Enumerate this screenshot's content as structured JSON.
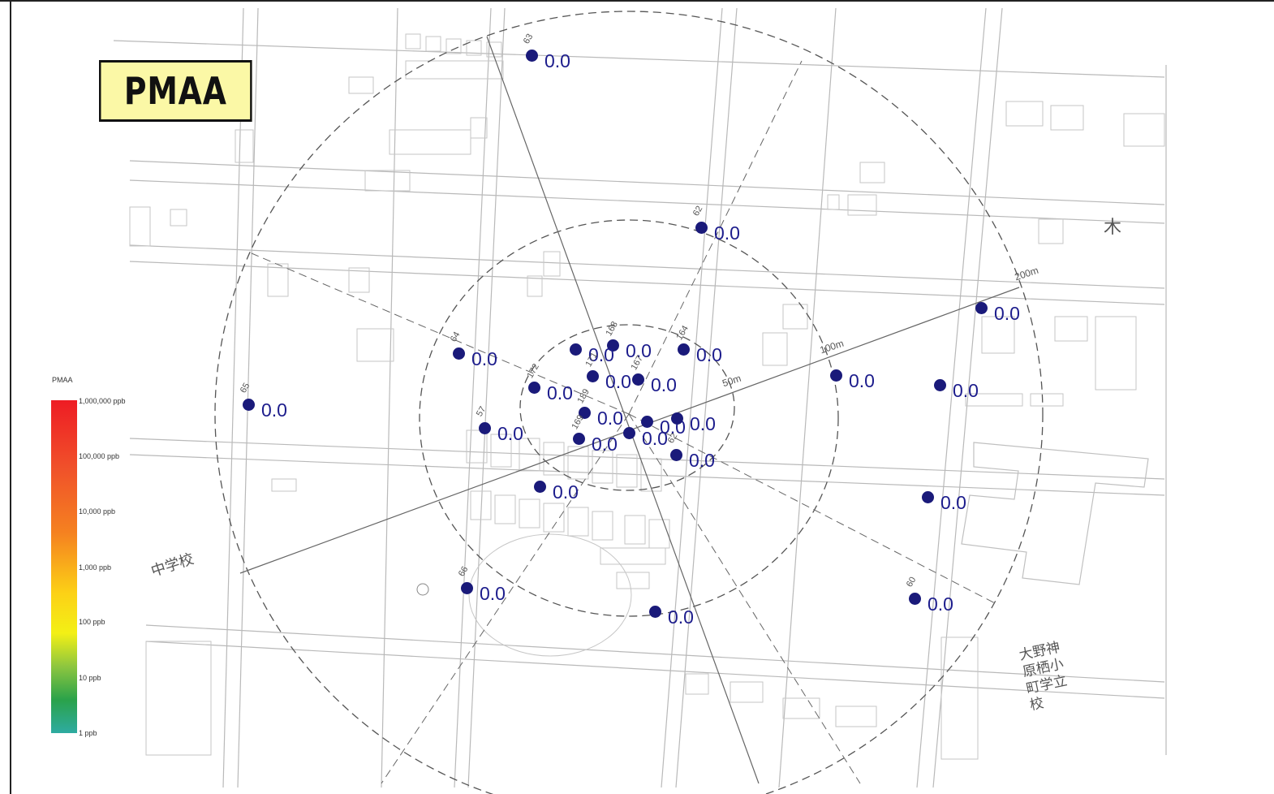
{
  "title": "PMAA",
  "legend": {
    "title": "PMAA",
    "ticks": [
      "1,000,000 ppb",
      "100,000 ppb",
      "10,000 ppb",
      "1,000 ppb",
      "100 ppb",
      "10 ppb",
      "1 ppb"
    ],
    "colors": [
      "#ee1c24",
      "#f58220",
      "#fcd116",
      "#f3f015",
      "#8dc63f",
      "#2aa24a",
      "#2eaba1"
    ]
  },
  "marker_color": "#1a1a7a",
  "value_color": "#1c1c8c",
  "ring_labels": [
    "200m",
    "100m",
    "50m"
  ],
  "map_labels": {
    "school_left": "中学校",
    "school_right": "大野神原栖小町学立校",
    "kanji_tree": "木"
  },
  "points": [
    {
      "id": "63",
      "value": "0.0"
    },
    {
      "id": "62",
      "value": "0.0"
    },
    {
      "id": "",
      "value": "0.0"
    },
    {
      "id": "64",
      "value": "0.0"
    },
    {
      "id": "168",
      "value": "0.0"
    },
    {
      "id": "",
      "value": "0.0"
    },
    {
      "id": "164",
      "value": "0.0"
    },
    {
      "id": "65",
      "value": "0.0"
    },
    {
      "id": "172",
      "value": "0.0"
    },
    {
      "id": "171",
      "value": "0.0"
    },
    {
      "id": "167",
      "value": "0.0"
    },
    {
      "id": "",
      "value": "0.0"
    },
    {
      "id": "",
      "value": "0.0"
    },
    {
      "id": "57",
      "value": "0.0"
    },
    {
      "id": "189",
      "value": "0.0"
    },
    {
      "id": "",
      "value": "0.0"
    },
    {
      "id": "",
      "value": "0.0"
    },
    {
      "id": "169",
      "value": "0.0"
    },
    {
      "id": "",
      "value": "0.0"
    },
    {
      "id": "62",
      "value": "0.0"
    },
    {
      "id": "",
      "value": "0.0"
    },
    {
      "id": "",
      "value": "0.0"
    },
    {
      "id": "66",
      "value": "0.0"
    },
    {
      "id": "",
      "value": "0.0"
    },
    {
      "id": "60",
      "value": "0.0"
    }
  ]
}
